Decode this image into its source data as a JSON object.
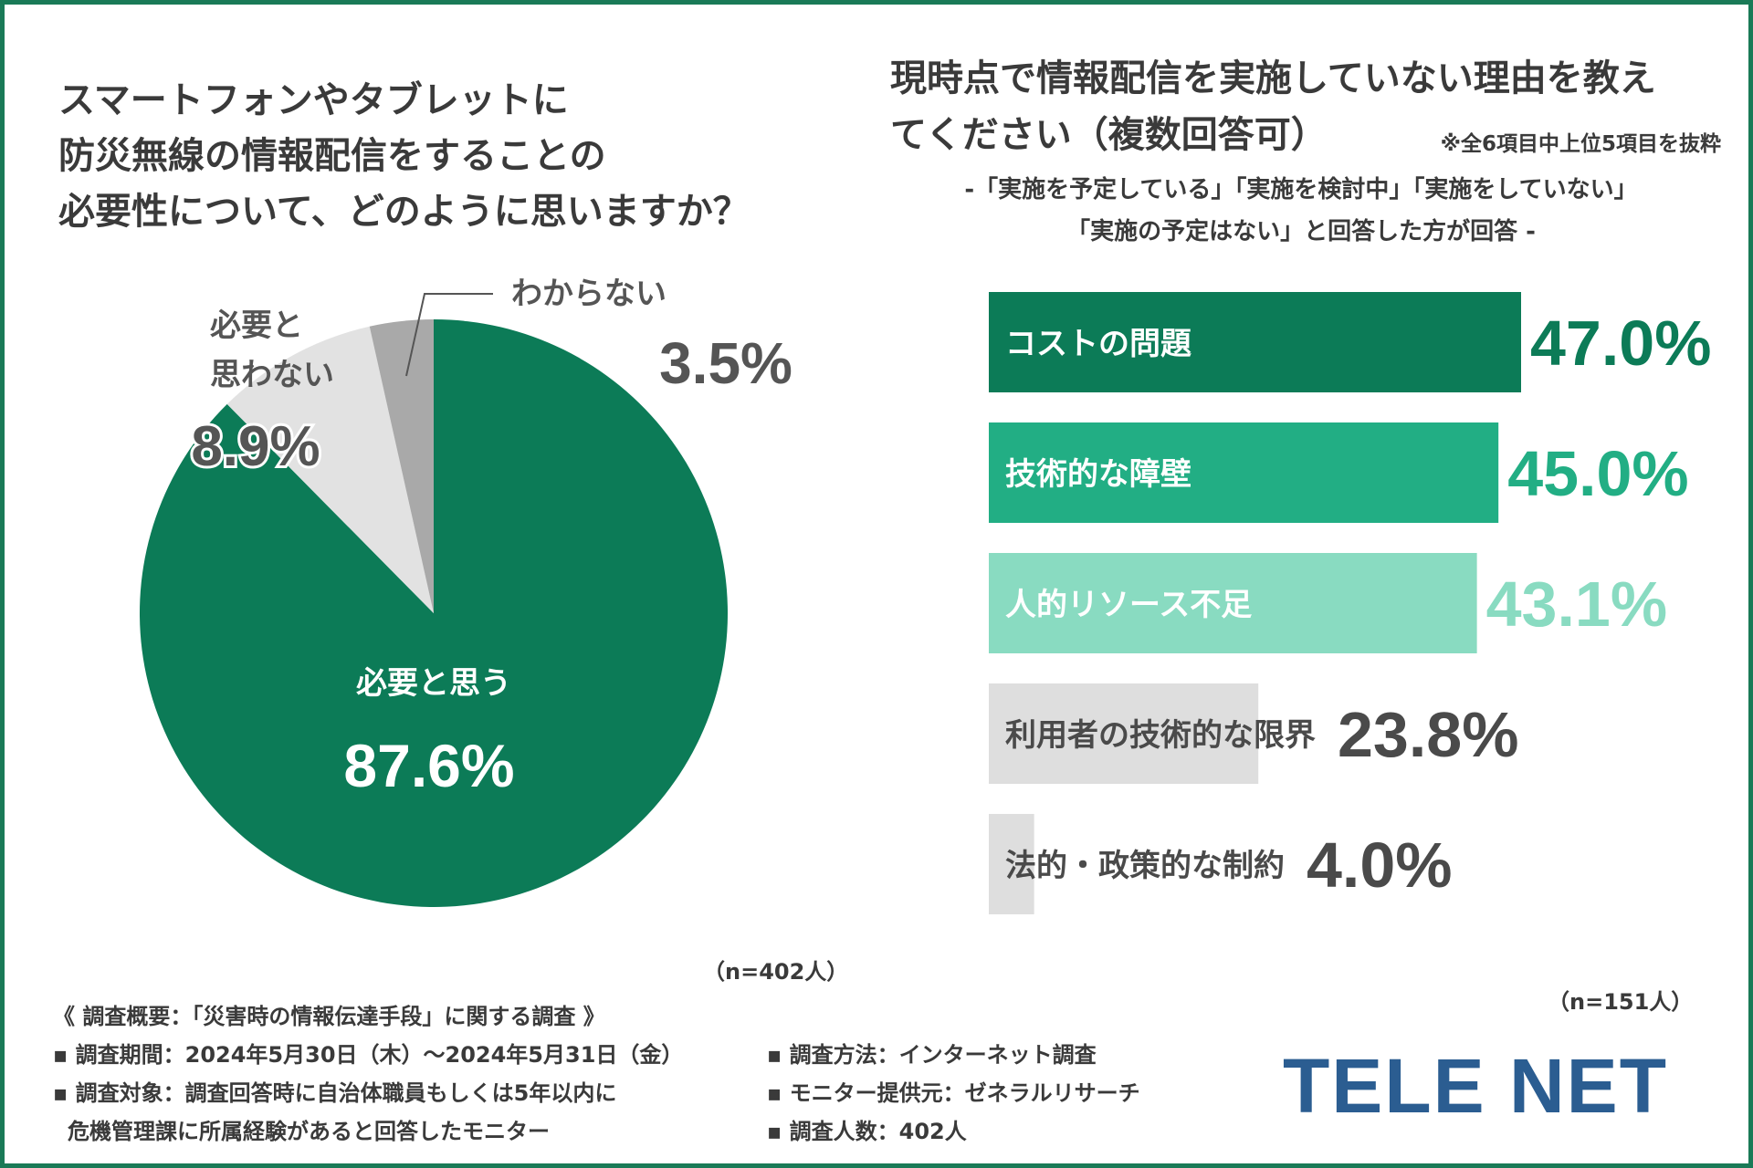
{
  "left": {
    "title_lines": [
      "スマートフォンやタブレットに",
      "防災無線の情報配信をすることの",
      "必要性について、どのように思いますか？"
    ],
    "sample": "（n=402人）"
  },
  "right": {
    "title_lines": [
      "現時点で情報配信を実施していない理由を教え",
      "てください（複数回答可）"
    ],
    "note": "※全6項目中上位5項目を抜粋",
    "subtitle_lines": [
      "-「実施を予定している」「実施を検討中」「実施をしていない」",
      "「実施の予定はない」と回答した方が回答 -"
    ],
    "sample": "（n=151人）"
  },
  "chart_data": [
    {
      "type": "pie",
      "title": "スマートフォンやタブレットに防災無線の情報配信をすることの必要性について、どのように思いますか？",
      "slices": [
        {
          "label": "必要と思う",
          "value": 87.6,
          "display": "87.6%",
          "color": "#0c7b57"
        },
        {
          "label": "必要と思わない",
          "value": 8.9,
          "display": "8.9%",
          "color": "#e2e2e2"
        },
        {
          "label": "わからない",
          "value": 3.5,
          "display": "3.5%",
          "color": "#a9a9a9"
        }
      ],
      "unit": "%"
    },
    {
      "type": "bar",
      "orientation": "horizontal",
      "title": "現時点で情報配信を実施していない理由を教えてください（複数回答可）",
      "categories": [
        "コストの問題",
        "技術的な障壁",
        "人的リソース不足",
        "利用者の技術的な限界",
        "法的・政策的な制約"
      ],
      "values": [
        47.0,
        45.0,
        43.1,
        23.8,
        4.0
      ],
      "value_labels": [
        "47.0%",
        "45.0%",
        "43.1%",
        "23.8%",
        "4.0%"
      ],
      "bar_colors": [
        "#0c7b57",
        "#22ae84",
        "#89dbc1",
        "#dedede",
        "#dedede"
      ],
      "value_colors": [
        "#0c7b57",
        "#22ae84",
        "#89dbc1",
        "#4a4a4a",
        "#4a4a4a"
      ],
      "label_colors": [
        "#ffffff",
        "#ffffff",
        "#ffffff",
        "#4a4a4a",
        "#4a4a4a"
      ],
      "xlim": [
        0,
        50
      ],
      "unit": "%"
    }
  ],
  "summary": {
    "title": "《 調査概要：「災害時の情報伝達手段」に関する調査 》",
    "period": "▪ 調査期間：2024年5月30日（木）～2024年5月31日（金）",
    "target_1": "▪ 調査対象：調査回答時に自治体職員もしくは5年以内に",
    "target_2": "危機管理課に所属経験があると回答したモニター",
    "method": "▪ 調査方法：インターネット調査",
    "provider": "▪ モニター提供元：ゼネラルリサーチ",
    "count": "▪ 調査人数：402人"
  },
  "logo": "TELE NET"
}
